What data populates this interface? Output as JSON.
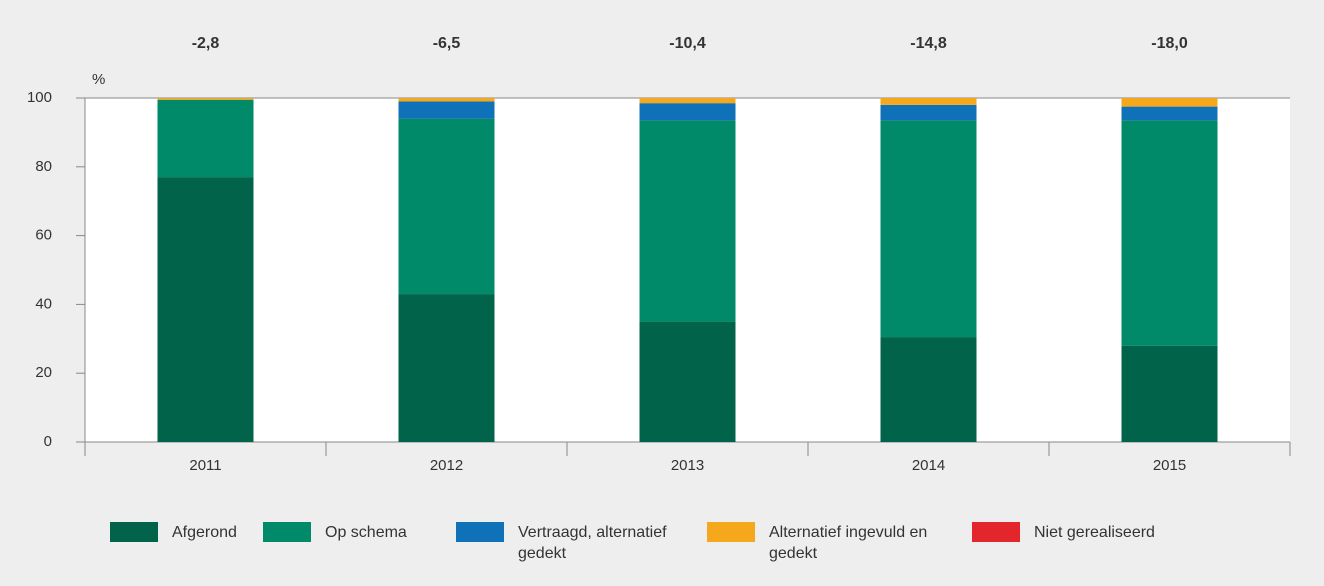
{
  "chart_data": {
    "type": "stacked_bar",
    "annotations": [
      "-2,8",
      "-6,5",
      "-10,4",
      "-14,8",
      "-18,0"
    ],
    "y_axis_label": "%",
    "categories": [
      "2011",
      "2012",
      "2013",
      "2014",
      "2015"
    ],
    "series": [
      {
        "name": "Afgerond",
        "color": "#00634a",
        "values": [
          77,
          43,
          35,
          30.5,
          28
        ]
      },
      {
        "name": "Op schema",
        "color": "#008a69",
        "values": [
          22.5,
          51,
          58.5,
          63,
          65.5
        ]
      },
      {
        "name": "Vertraagd, alternatief gedekt",
        "color": "#0f72b8",
        "values": [
          0,
          5,
          5,
          4.5,
          4
        ]
      },
      {
        "name": "Alternatief ingevuld en gedekt",
        "color": "#f5a81c",
        "values": [
          0.5,
          1,
          1.5,
          2,
          2.5
        ]
      },
      {
        "name": "Niet gerealiseerd",
        "color": "#e3262b",
        "values": [
          0,
          0,
          0,
          0,
          0
        ]
      }
    ],
    "ylim": [
      0,
      100
    ],
    "yticks": [
      0,
      20,
      40,
      60,
      80,
      100
    ]
  }
}
